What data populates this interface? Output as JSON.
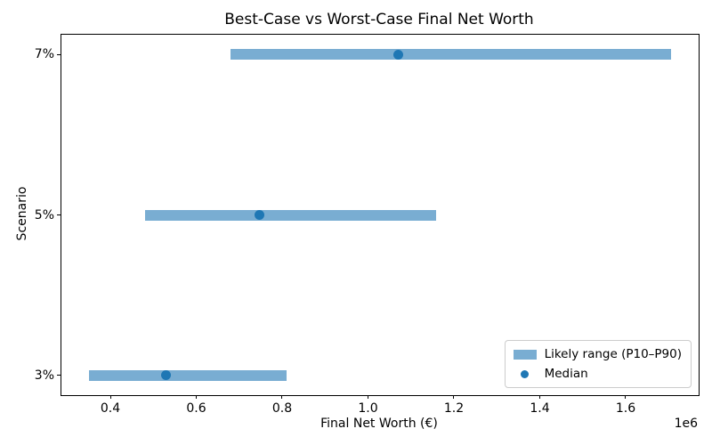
{
  "chart_data": {
    "type": "bar",
    "orientation": "horizontal",
    "title": "Best-Case vs Worst-Case Final Net Worth",
    "xlabel": "Final Net Worth (€)",
    "ylabel": "Scenario",
    "x_offset_label": "1e6",
    "categories": [
      "7%",
      "5%",
      "3%"
    ],
    "scenarios": [
      {
        "label": "7%",
        "p10": 680000,
        "median": 1070000,
        "p90": 1705000
      },
      {
        "label": "5%",
        "p10": 481000,
        "median": 748000,
        "p90": 1158000
      },
      {
        "label": "3%",
        "p10": 350000,
        "median": 529000,
        "p90": 811000
      }
    ],
    "series": [
      {
        "name": "Likely range (P10–P90)",
        "type": "range",
        "p10": [
          680000,
          481000,
          350000
        ],
        "p90": [
          1705000,
          1158000,
          811000
        ]
      },
      {
        "name": "Median",
        "type": "point",
        "values": [
          1070000,
          748000,
          529000
        ]
      }
    ],
    "xlim": [
      286000,
      1770000
    ],
    "xticks": {
      "values": [
        400000,
        600000,
        800000,
        1000000,
        1200000,
        1400000,
        1600000
      ],
      "labels": [
        "0.4",
        "0.6",
        "0.8",
        "1.0",
        "1.2",
        "1.4",
        "1.6"
      ]
    },
    "grid": false,
    "legend": {
      "position": "lower right",
      "entries": [
        {
          "label": "Likely range (P10–P90)",
          "swatch": "patch"
        },
        {
          "label": "Median",
          "swatch": "dot"
        }
      ]
    },
    "colors": {
      "bar": "#79add2",
      "dot": "#1f77b4",
      "spine": "#000000",
      "legend_edge": "#cccccc"
    }
  }
}
